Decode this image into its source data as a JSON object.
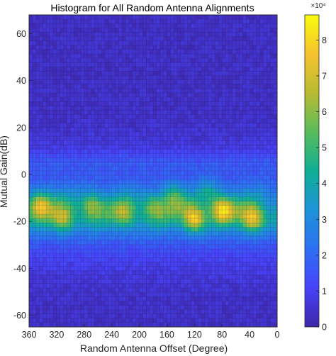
{
  "chart_data": {
    "type": "heatmap",
    "title": "Histogram for All Random Antenna Alignments",
    "xlabel": "Random Antenna Offset (Degree)",
    "ylabel": "Mutual Gain(dB)",
    "xlim": [
      360,
      0
    ],
    "ylim": [
      -65,
      68
    ],
    "x_reversed": true,
    "x_ticks": [
      360,
      320,
      280,
      240,
      200,
      160,
      120,
      80,
      40,
      0
    ],
    "y_ticks": [
      60,
      40,
      20,
      0,
      -20,
      -40,
      -60
    ],
    "grid_bins": {
      "x": 72,
      "y": 72
    },
    "grid_lines": true,
    "colormap": "parula",
    "colorbar": {
      "min": 0,
      "max": 8.7,
      "ticks": [
        0,
        1,
        2,
        3,
        4,
        5,
        6,
        7,
        8
      ],
      "exponent_label": "×10⁴",
      "placement": "right"
    },
    "density_profile": {
      "description_units": "counts ×10^4 by gain (dB), approximate",
      "peak_gain": -17,
      "core_band": [
        -25,
        -5
      ],
      "background_level": 0.4,
      "band_level": 3.5,
      "peak_level": 8.0,
      "hotspots": [
        {
          "x": 120,
          "y": -19,
          "level": 8.0
        },
        {
          "x": 35,
          "y": -19,
          "level": 7.8
        },
        {
          "x": 80,
          "y": -15,
          "level": 7.6
        },
        {
          "x": 345,
          "y": -13,
          "level": 7.0
        },
        {
          "x": 310,
          "y": -19,
          "level": 6.6
        },
        {
          "x": 270,
          "y": -13,
          "level": 6.2
        },
        {
          "x": 220,
          "y": -17,
          "level": 5.8
        },
        {
          "x": 180,
          "y": -14,
          "level": 6.0
        },
        {
          "x": 150,
          "y": -9,
          "level": 5.6
        },
        {
          "x": 100,
          "y": -7,
          "level": 5.2
        }
      ]
    }
  }
}
